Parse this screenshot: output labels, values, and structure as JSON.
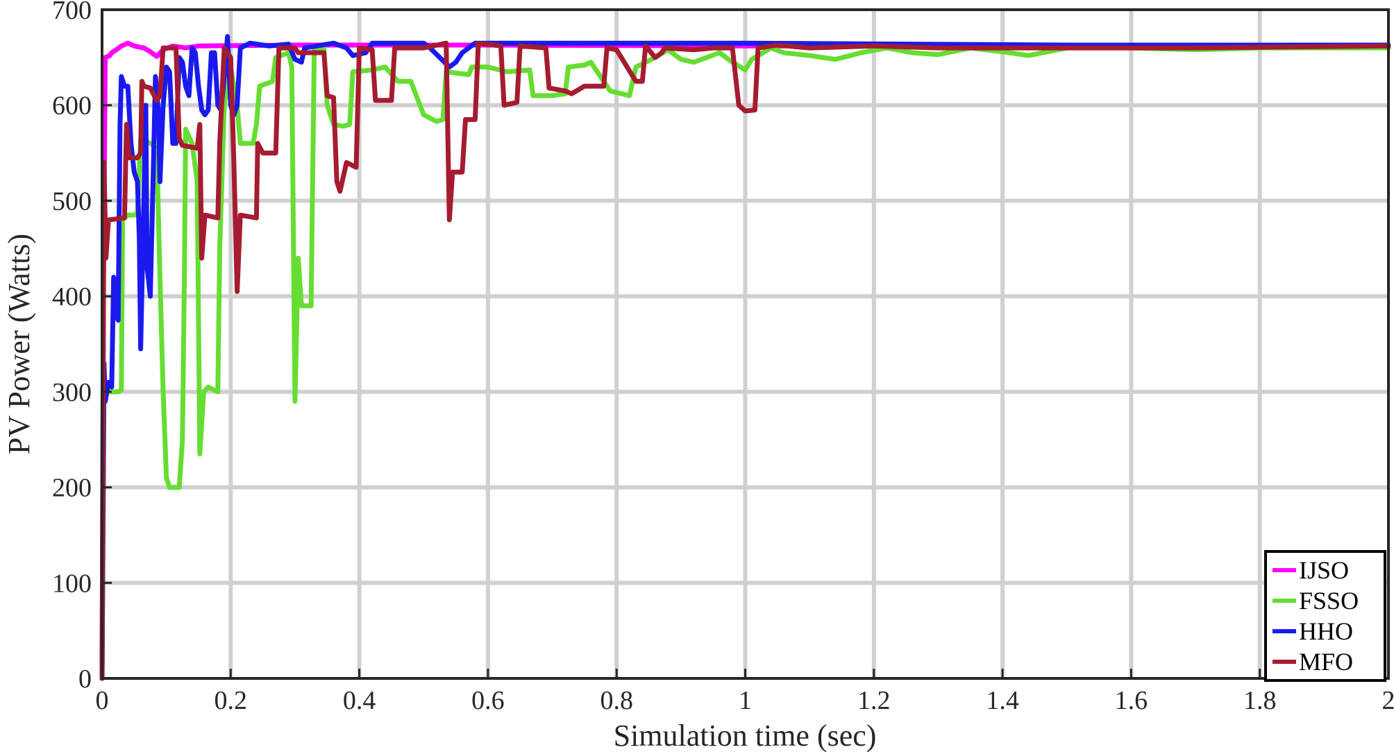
{
  "chart_data": {
    "type": "line",
    "title": "",
    "xlabel": "Simulation time (sec)",
    "ylabel": "PV Power (Watts)",
    "xlim": [
      0,
      2
    ],
    "ylim": [
      0,
      700
    ],
    "x_ticks": [
      "0",
      "0.2",
      "0.4",
      "0.6",
      "0.8",
      "1",
      "1.2",
      "1.4",
      "1.6",
      "1.8",
      "2"
    ],
    "y_ticks": [
      "0",
      "100",
      "200",
      "300",
      "400",
      "500",
      "600",
      "700"
    ],
    "grid": true,
    "legend_position": "bottom-right",
    "series": [
      {
        "name": "IJSO",
        "color": "#ff00ff",
        "points": [
          [
            0,
            0
          ],
          [
            0.002,
            400
          ],
          [
            0.005,
            650
          ],
          [
            0.012,
            652
          ],
          [
            0.015,
            655
          ],
          [
            0.022,
            658
          ],
          [
            0.03,
            662
          ],
          [
            0.04,
            665
          ],
          [
            0.05,
            662
          ],
          [
            0.065,
            660
          ],
          [
            0.075,
            656
          ],
          [
            0.085,
            651
          ],
          [
            0.095,
            658
          ],
          [
            0.11,
            662
          ],
          [
            0.13,
            660
          ],
          [
            0.15,
            662
          ],
          [
            0.3,
            663
          ],
          [
            0.6,
            663
          ],
          [
            1.0,
            662
          ],
          [
            2.0,
            662
          ]
        ]
      },
      {
        "name": "FSSO",
        "color": "#66dd33",
        "points": [
          [
            0,
            0
          ],
          [
            0.003,
            300
          ],
          [
            0.025,
            300
          ],
          [
            0.03,
            302
          ],
          [
            0.032,
            480
          ],
          [
            0.04,
            485
          ],
          [
            0.05,
            485
          ],
          [
            0.055,
            487
          ],
          [
            0.06,
            565
          ],
          [
            0.075,
            560
          ],
          [
            0.085,
            555
          ],
          [
            0.09,
            420
          ],
          [
            0.095,
            300
          ],
          [
            0.1,
            210
          ],
          [
            0.105,
            200
          ],
          [
            0.12,
            200
          ],
          [
            0.125,
            250
          ],
          [
            0.128,
            420
          ],
          [
            0.13,
            575
          ],
          [
            0.14,
            560
          ],
          [
            0.148,
            520
          ],
          [
            0.152,
            235
          ],
          [
            0.158,
            300
          ],
          [
            0.165,
            305
          ],
          [
            0.18,
            300
          ],
          [
            0.183,
            450
          ],
          [
            0.19,
            600
          ],
          [
            0.2,
            640
          ],
          [
            0.21,
            600
          ],
          [
            0.215,
            560
          ],
          [
            0.235,
            560
          ],
          [
            0.24,
            580
          ],
          [
            0.245,
            620
          ],
          [
            0.265,
            625
          ],
          [
            0.27,
            650
          ],
          [
            0.29,
            655
          ],
          [
            0.295,
            640
          ],
          [
            0.3,
            290
          ],
          [
            0.305,
            440
          ],
          [
            0.31,
            390
          ],
          [
            0.325,
            390
          ],
          [
            0.33,
            660
          ],
          [
            0.345,
            660
          ],
          [
            0.35,
            600
          ],
          [
            0.36,
            580
          ],
          [
            0.375,
            578
          ],
          [
            0.385,
            580
          ],
          [
            0.39,
            635
          ],
          [
            0.42,
            637
          ],
          [
            0.44,
            640
          ],
          [
            0.46,
            625
          ],
          [
            0.48,
            625
          ],
          [
            0.5,
            590
          ],
          [
            0.52,
            583
          ],
          [
            0.53,
            585
          ],
          [
            0.535,
            635
          ],
          [
            0.57,
            632
          ],
          [
            0.575,
            640
          ],
          [
            0.6,
            640
          ],
          [
            0.63,
            635
          ],
          [
            0.665,
            637
          ],
          [
            0.67,
            610
          ],
          [
            0.7,
            610
          ],
          [
            0.72,
            612
          ],
          [
            0.725,
            640
          ],
          [
            0.75,
            642
          ],
          [
            0.76,
            645
          ],
          [
            0.79,
            615
          ],
          [
            0.82,
            610
          ],
          [
            0.83,
            640
          ],
          [
            0.86,
            650
          ],
          [
            0.88,
            658
          ],
          [
            0.9,
            648
          ],
          [
            0.92,
            645
          ],
          [
            0.94,
            650
          ],
          [
            0.96,
            655
          ],
          [
            0.98,
            645
          ],
          [
            1.0,
            637
          ],
          [
            1.01,
            648
          ],
          [
            1.04,
            660
          ],
          [
            1.06,
            655
          ],
          [
            1.1,
            652
          ],
          [
            1.14,
            648
          ],
          [
            1.18,
            655
          ],
          [
            1.22,
            660
          ],
          [
            1.26,
            655
          ],
          [
            1.3,
            653
          ],
          [
            1.35,
            660
          ],
          [
            1.4,
            656
          ],
          [
            1.44,
            652
          ],
          [
            1.5,
            660
          ],
          [
            1.55,
            662
          ],
          [
            1.6,
            660
          ],
          [
            1.7,
            658
          ],
          [
            1.8,
            660
          ],
          [
            1.9,
            660
          ],
          [
            2.0,
            660
          ]
        ]
      },
      {
        "name": "HHO",
        "color": "#1a1aee",
        "points": [
          [
            0,
            0
          ],
          [
            0.003,
            330
          ],
          [
            0.005,
            290
          ],
          [
            0.01,
            310
          ],
          [
            0.015,
            305
          ],
          [
            0.018,
            420
          ],
          [
            0.022,
            380
          ],
          [
            0.025,
            375
          ],
          [
            0.028,
            580
          ],
          [
            0.03,
            630
          ],
          [
            0.035,
            620
          ],
          [
            0.04,
            620
          ],
          [
            0.045,
            560
          ],
          [
            0.05,
            530
          ],
          [
            0.055,
            520
          ],
          [
            0.058,
            460
          ],
          [
            0.06,
            345
          ],
          [
            0.065,
            500
          ],
          [
            0.068,
            600
          ],
          [
            0.07,
            430
          ],
          [
            0.075,
            400
          ],
          [
            0.08,
            540
          ],
          [
            0.083,
            630
          ],
          [
            0.088,
            590
          ],
          [
            0.09,
            520
          ],
          [
            0.095,
            600
          ],
          [
            0.1,
            640
          ],
          [
            0.105,
            635
          ],
          [
            0.11,
            560
          ],
          [
            0.115,
            560
          ],
          [
            0.12,
            650
          ],
          [
            0.125,
            645
          ],
          [
            0.13,
            620
          ],
          [
            0.135,
            610
          ],
          [
            0.14,
            660
          ],
          [
            0.145,
            655
          ],
          [
            0.15,
            620
          ],
          [
            0.155,
            595
          ],
          [
            0.16,
            590
          ],
          [
            0.165,
            595
          ],
          [
            0.17,
            655
          ],
          [
            0.175,
            655
          ],
          [
            0.18,
            600
          ],
          [
            0.185,
            595
          ],
          [
            0.19,
            630
          ],
          [
            0.195,
            672
          ],
          [
            0.2,
            600
          ],
          [
            0.205,
            590
          ],
          [
            0.21,
            600
          ],
          [
            0.215,
            660
          ],
          [
            0.23,
            665
          ],
          [
            0.26,
            662
          ],
          [
            0.29,
            664
          ],
          [
            0.3,
            648
          ],
          [
            0.31,
            645
          ],
          [
            0.315,
            660
          ],
          [
            0.36,
            665
          ],
          [
            0.38,
            660
          ],
          [
            0.39,
            652
          ],
          [
            0.41,
            655
          ],
          [
            0.42,
            665
          ],
          [
            0.5,
            665
          ],
          [
            0.51,
            660
          ],
          [
            0.54,
            640
          ],
          [
            0.55,
            645
          ],
          [
            0.56,
            655
          ],
          [
            0.58,
            665
          ],
          [
            0.7,
            665
          ],
          [
            1.0,
            665
          ],
          [
            1.5,
            663
          ],
          [
            2.0,
            663
          ]
        ]
      },
      {
        "name": "MFO",
        "color": "#a51c30",
        "points": [
          [
            0,
            0
          ],
          [
            0.003,
            540
          ],
          [
            0.006,
            440
          ],
          [
            0.01,
            480
          ],
          [
            0.035,
            482
          ],
          [
            0.038,
            580
          ],
          [
            0.042,
            545
          ],
          [
            0.055,
            545
          ],
          [
            0.06,
            550
          ],
          [
            0.062,
            625
          ],
          [
            0.065,
            620
          ],
          [
            0.075,
            618
          ],
          [
            0.085,
            605
          ],
          [
            0.09,
            610
          ],
          [
            0.095,
            660
          ],
          [
            0.115,
            660
          ],
          [
            0.12,
            565
          ],
          [
            0.125,
            558
          ],
          [
            0.148,
            555
          ],
          [
            0.152,
            580
          ],
          [
            0.155,
            440
          ],
          [
            0.16,
            485
          ],
          [
            0.18,
            482
          ],
          [
            0.183,
            560
          ],
          [
            0.19,
            660
          ],
          [
            0.2,
            650
          ],
          [
            0.205,
            540
          ],
          [
            0.21,
            405
          ],
          [
            0.215,
            485
          ],
          [
            0.24,
            482
          ],
          [
            0.242,
            560
          ],
          [
            0.25,
            550
          ],
          [
            0.27,
            550
          ],
          [
            0.275,
            660
          ],
          [
            0.3,
            660
          ],
          [
            0.305,
            655
          ],
          [
            0.345,
            655
          ],
          [
            0.35,
            610
          ],
          [
            0.36,
            608
          ],
          [
            0.365,
            520
          ],
          [
            0.37,
            510
          ],
          [
            0.38,
            540
          ],
          [
            0.395,
            535
          ],
          [
            0.4,
            660
          ],
          [
            0.42,
            658
          ],
          [
            0.425,
            605
          ],
          [
            0.45,
            605
          ],
          [
            0.455,
            660
          ],
          [
            0.5,
            660
          ],
          [
            0.535,
            665
          ],
          [
            0.54,
            480
          ],
          [
            0.545,
            530
          ],
          [
            0.56,
            530
          ],
          [
            0.565,
            585
          ],
          [
            0.58,
            585
          ],
          [
            0.585,
            665
          ],
          [
            0.62,
            662
          ],
          [
            0.625,
            600
          ],
          [
            0.645,
            603
          ],
          [
            0.65,
            662
          ],
          [
            0.69,
            660
          ],
          [
            0.695,
            618
          ],
          [
            0.72,
            615
          ],
          [
            0.73,
            612
          ],
          [
            0.75,
            620
          ],
          [
            0.78,
            620
          ],
          [
            0.785,
            660
          ],
          [
            0.8,
            658
          ],
          [
            0.83,
            625
          ],
          [
            0.84,
            625
          ],
          [
            0.845,
            662
          ],
          [
            0.86,
            650
          ],
          [
            0.87,
            655
          ],
          [
            0.875,
            660
          ],
          [
            0.92,
            658
          ],
          [
            0.95,
            660
          ],
          [
            0.98,
            660
          ],
          [
            0.99,
            600
          ],
          [
            1.0,
            594
          ],
          [
            1.015,
            595
          ],
          [
            1.02,
            660
          ],
          [
            1.05,
            663
          ],
          [
            1.1,
            660
          ],
          [
            1.2,
            662
          ],
          [
            1.3,
            660
          ],
          [
            1.5,
            660
          ],
          [
            1.7,
            660
          ],
          [
            2.0,
            662
          ]
        ]
      }
    ]
  }
}
